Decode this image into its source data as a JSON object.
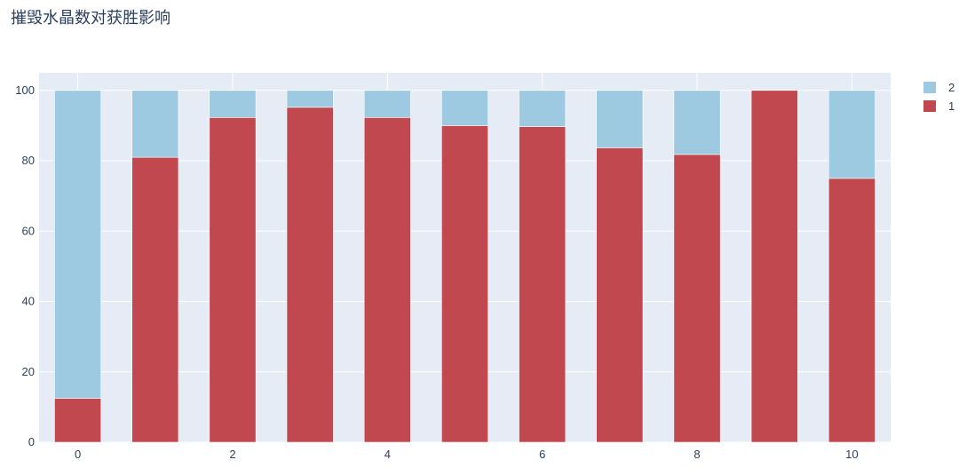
{
  "chart_data": {
    "type": "bar",
    "barmode": "stack",
    "title": "摧毁水晶数对获胜影响",
    "xlabel": "",
    "ylabel": "",
    "categories": [
      0,
      1,
      2,
      3,
      4,
      5,
      6,
      7,
      8,
      9,
      10
    ],
    "x_ticks": [
      0,
      2,
      4,
      6,
      8,
      10
    ],
    "y_ticks": [
      0,
      20,
      40,
      60,
      80,
      100
    ],
    "ylim": [
      0,
      105
    ],
    "grid": true,
    "legend_position": "top-right",
    "series": [
      {
        "name": "1",
        "color": "#c0484e",
        "values": [
          12.5,
          81,
          92.3,
          95.2,
          92.3,
          90,
          89.7,
          83.7,
          81.8,
          100,
          75
        ]
      },
      {
        "name": "2",
        "color": "#9ecae1",
        "values": [
          87.5,
          19,
          7.7,
          4.8,
          7.7,
          10,
          10.3,
          16.3,
          18.2,
          0,
          25
        ]
      }
    ],
    "legend_order": [
      "2",
      "1"
    ]
  }
}
